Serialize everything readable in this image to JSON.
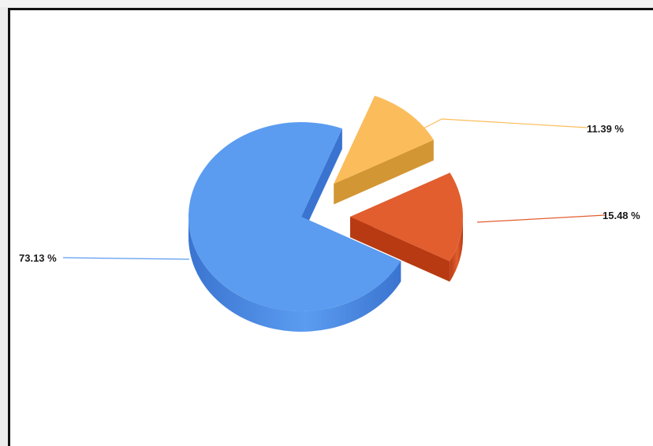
{
  "chart_data": {
    "type": "pie",
    "style": "3d-exploded",
    "title": "",
    "slices": [
      {
        "label": "73.13 %",
        "value": 73.13,
        "color": "#5b9cf0",
        "side": "#3a74d0"
      },
      {
        "label": "15.48 %",
        "value": 15.48,
        "color": "#e25e2f",
        "side": "#b83a12"
      },
      {
        "label": "11.39 %",
        "value": 11.39,
        "color": "#fbbd5c",
        "side": "#d39634"
      }
    ],
    "legend": "none"
  }
}
